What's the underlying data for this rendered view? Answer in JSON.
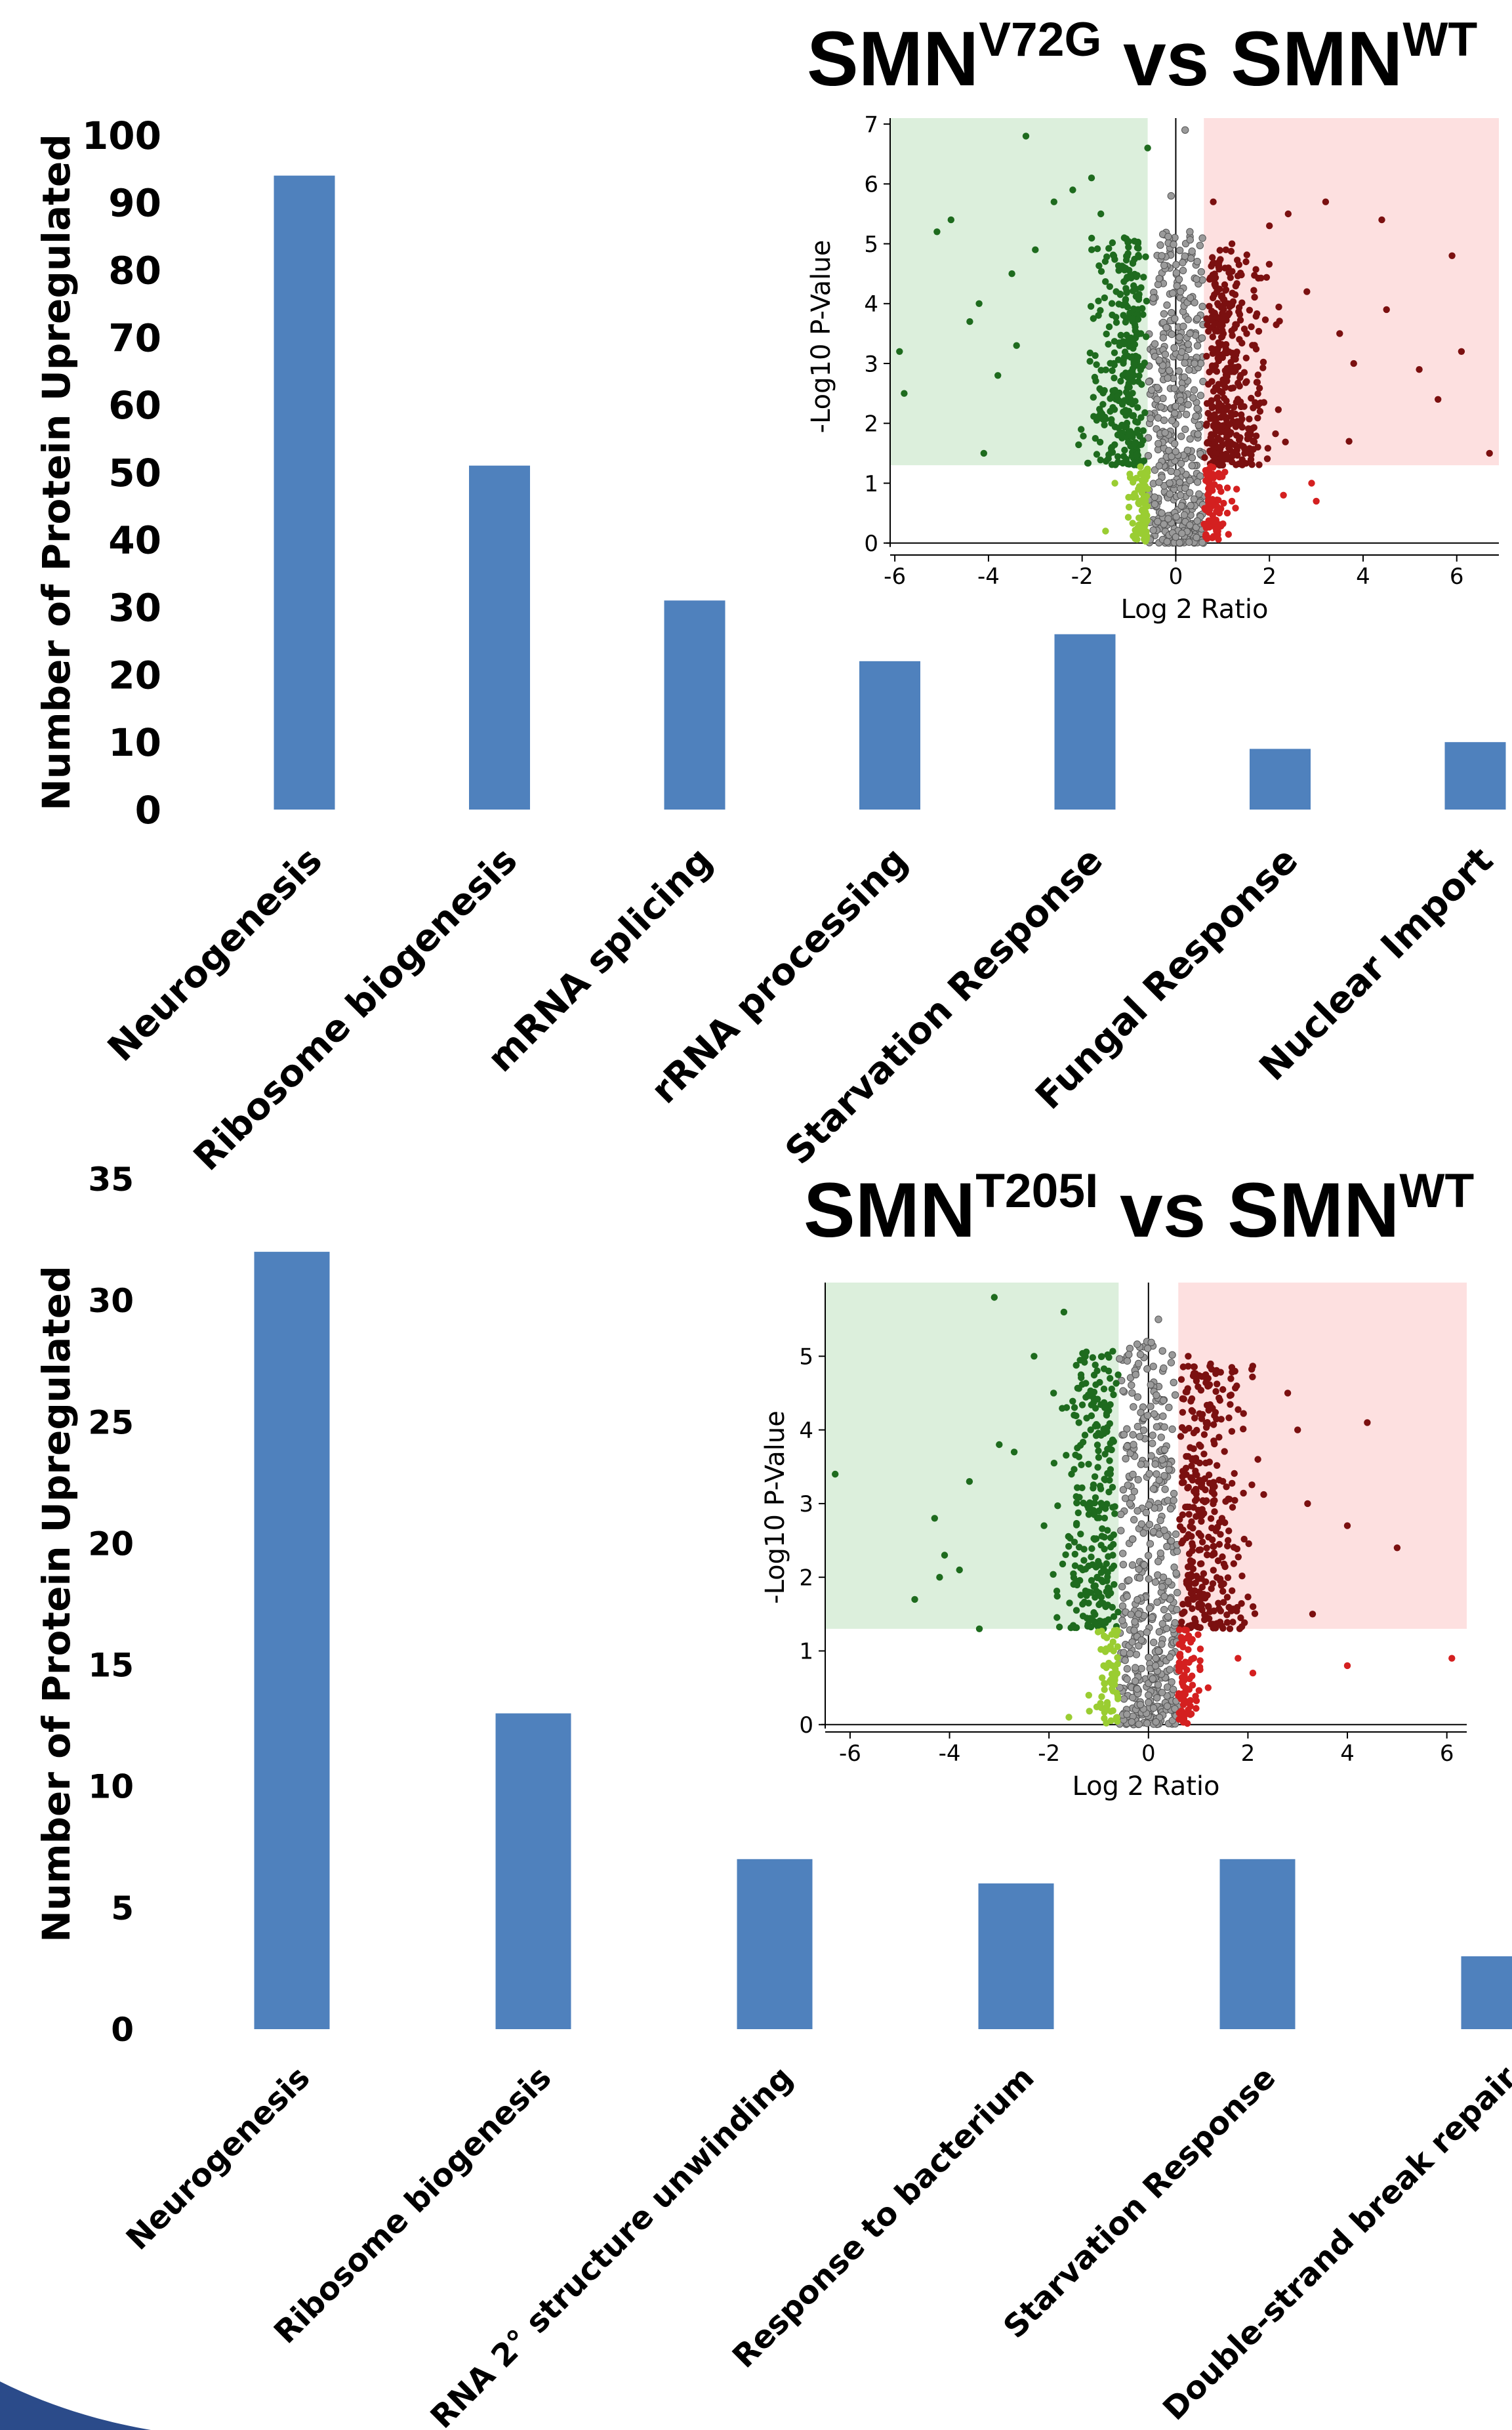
{
  "chart_data": [
    {
      "type": "bar",
      "ylabel": "Number of Protein Upregulated",
      "ylim": [
        0,
        100
      ],
      "yticks": [
        0,
        10,
        20,
        30,
        40,
        50,
        60,
        70,
        80,
        90,
        100
      ],
      "categories": [
        "Neurogenesis",
        "Ribosome biogenesis",
        "mRNA splicing",
        "rRNA processing",
        "Starvation Response",
        "Fungal Response",
        "Nuclear Import"
      ],
      "values": [
        94,
        51,
        31,
        22,
        26,
        9,
        10
      ],
      "grid": false,
      "bar_color": "#4f81bd"
    },
    {
      "type": "scatter",
      "title_base": "SMN",
      "title_sup": "V72G",
      "title_mid": " vs SMN",
      "title_sup2": "WT",
      "xlabel": "Log 2 Ratio",
      "ylabel": "-Log10 P-Value",
      "xlim": [
        -6.1,
        6.9
      ],
      "ylim": [
        -0.2,
        7.1
      ],
      "xticks": [
        -6,
        -4,
        -2,
        0,
        2,
        4,
        6
      ],
      "yticks": [
        0,
        1,
        2,
        3,
        4,
        5,
        6,
        7
      ],
      "fc_threshold": 0.6,
      "p_threshold": 1.3,
      "colors": {
        "down_sig": "#1e6b1e",
        "down_ns": "#9acd32",
        "up_sig": "#7b1010",
        "up_ns": "#d42020",
        "mid": "#9a9a9a",
        "region_down": "#dcefdc",
        "region_up": "#fde0e0"
      },
      "points": [
        [
          -5.9,
          3.2
        ],
        [
          -5.8,
          2.5
        ],
        [
          -5.1,
          5.2
        ],
        [
          -4.8,
          5.4
        ],
        [
          -4.4,
          3.7
        ],
        [
          -4.2,
          4.0
        ],
        [
          -4.1,
          1.5
        ],
        [
          -3.8,
          2.8
        ],
        [
          -3.5,
          4.5
        ],
        [
          -3.4,
          3.3
        ],
        [
          -3.2,
          6.8
        ],
        [
          -3.0,
          4.9
        ],
        [
          -2.6,
          5.7
        ],
        [
          -2.2,
          5.9
        ],
        [
          -1.8,
          6.1
        ],
        [
          -1.6,
          5.5
        ],
        [
          -0.6,
          6.6
        ],
        [
          -1.4,
          2.2
        ],
        [
          -1.2,
          3.3
        ],
        [
          -1.0,
          1.8
        ],
        [
          -0.8,
          2.7
        ],
        [
          -0.9,
          4.3
        ],
        [
          -1.1,
          5.1
        ],
        [
          -1.5,
          0.2
        ],
        [
          -1.0,
          0.6
        ],
        [
          -0.8,
          0.9
        ],
        [
          -0.7,
          0.4
        ],
        [
          -1.3,
          1.0
        ],
        [
          0.2,
          6.9
        ],
        [
          -0.1,
          5.8
        ],
        [
          0.3,
          5.2
        ],
        [
          -0.3,
          4.8
        ],
        [
          0.1,
          4.2
        ],
        [
          -0.2,
          3.6
        ],
        [
          0.4,
          3.0
        ],
        [
          -0.4,
          2.4
        ],
        [
          0.2,
          1.9
        ],
        [
          -0.1,
          1.2
        ],
        [
          0.1,
          0.8
        ],
        [
          -0.3,
          0.5
        ],
        [
          0.3,
          0.3
        ],
        [
          0.0,
          0.1
        ],
        [
          0.8,
          5.7
        ],
        [
          1.2,
          5.0
        ],
        [
          1.5,
          4.7
        ],
        [
          2.0,
          5.3
        ],
        [
          2.4,
          5.5
        ],
        [
          3.2,
          5.7
        ],
        [
          3.5,
          3.5
        ],
        [
          3.8,
          3.0
        ],
        [
          4.4,
          5.4
        ],
        [
          5.2,
          2.9
        ],
        [
          5.6,
          2.4
        ],
        [
          5.9,
          4.8
        ],
        [
          6.1,
          3.2
        ],
        [
          6.7,
          1.5
        ],
        [
          4.5,
          3.9
        ],
        [
          2.8,
          4.2
        ],
        [
          1.8,
          2.2
        ],
        [
          1.0,
          3.1
        ],
        [
          0.9,
          1.6
        ],
        [
          1.1,
          0.5
        ],
        [
          1.3,
          0.9
        ],
        [
          2.3,
          0.8
        ],
        [
          2.9,
          1.0
        ],
        [
          3.0,
          0.7
        ],
        [
          3.7,
          1.7
        ],
        [
          0.9,
          0.2
        ]
      ],
      "left_sig_count": 320,
      "left_ns_count": 70,
      "mid_count": 460,
      "right_sig_count": 380,
      "right_ns_count": 90
    },
    {
      "type": "bar",
      "ylabel": "Number of Protein Upregulated",
      "ylim": [
        0,
        35
      ],
      "yticks": [
        0,
        5,
        10,
        15,
        20,
        25,
        30,
        35
      ],
      "categories": [
        "Neurogenesis",
        "Ribosome biogenesis",
        "RNA 2° structure unwinding",
        "Response to bacterium",
        "Starvation Response",
        "Double-strand break repair"
      ],
      "values": [
        32,
        13,
        7,
        6,
        7,
        3
      ],
      "grid": false,
      "bar_color": "#4f81bd"
    },
    {
      "type": "scatter",
      "title_base": "SMN",
      "title_sup": "T205I",
      "title_mid": " vs SMN",
      "title_sup2": "WT",
      "xlabel": "Log 2 Ratio",
      "ylabel": "-Log10 P-Value",
      "xlim": [
        -6.5,
        6.4
      ],
      "ylim": [
        -0.1,
        6.0
      ],
      "xticks": [
        -6,
        -4,
        -2,
        0,
        2,
        4,
        6
      ],
      "yticks": [
        0,
        1,
        2,
        3,
        4,
        5
      ],
      "fc_threshold": 0.6,
      "p_threshold": 1.3,
      "colors": {
        "down_sig": "#1e6b1e",
        "down_ns": "#9acd32",
        "up_sig": "#7b1010",
        "up_ns": "#d42020",
        "mid": "#9a9a9a",
        "region_down": "#dcefdc",
        "region_up": "#fde0e0"
      },
      "points": [
        [
          -6.3,
          3.4
        ],
        [
          -4.7,
          1.7
        ],
        [
          -4.3,
          2.8
        ],
        [
          -4.2,
          2.0
        ],
        [
          -4.1,
          2.3
        ],
        [
          -3.8,
          2.1
        ],
        [
          -3.6,
          3.3
        ],
        [
          -3.4,
          1.3
        ],
        [
          -3.1,
          5.8
        ],
        [
          -3.0,
          3.8
        ],
        [
          -2.7,
          3.7
        ],
        [
          -2.3,
          5.0
        ],
        [
          -2.1,
          2.7
        ],
        [
          -1.7,
          5.6
        ],
        [
          -1.4,
          4.1
        ],
        [
          -0.8,
          4.8
        ],
        [
          -1.6,
          0.1
        ],
        [
          -1.2,
          0.4
        ],
        [
          -0.9,
          0.8
        ],
        [
          -0.7,
          1.0
        ],
        [
          0.2,
          5.5
        ],
        [
          -0.2,
          4.9
        ],
        [
          0.3,
          4.4
        ],
        [
          -0.3,
          3.8
        ],
        [
          0.1,
          3.2
        ],
        [
          -0.1,
          2.6
        ],
        [
          0.3,
          2.0
        ],
        [
          -0.2,
          1.5
        ],
        [
          0.2,
          1.0
        ],
        [
          0.0,
          0.4
        ],
        [
          0.8,
          5.0
        ],
        [
          1.2,
          4.7
        ],
        [
          2.8,
          4.5
        ],
        [
          3.0,
          4.0
        ],
        [
          4.4,
          4.1
        ],
        [
          3.2,
          3.0
        ],
        [
          4.0,
          2.7
        ],
        [
          5.0,
          2.4
        ],
        [
          3.3,
          1.5
        ],
        [
          2.2,
          3.6
        ],
        [
          1.6,
          2.5
        ],
        [
          1.0,
          3.3
        ],
        [
          0.9,
          1.7
        ],
        [
          1.2,
          0.5
        ],
        [
          1.8,
          0.9
        ],
        [
          2.1,
          0.7
        ],
        [
          4.0,
          0.8
        ],
        [
          6.1,
          0.9
        ],
        [
          0.8,
          0.2
        ]
      ],
      "left_sig_count": 260,
      "left_ns_count": 60,
      "mid_count": 440,
      "right_sig_count": 340,
      "right_ns_count": 80
    }
  ]
}
